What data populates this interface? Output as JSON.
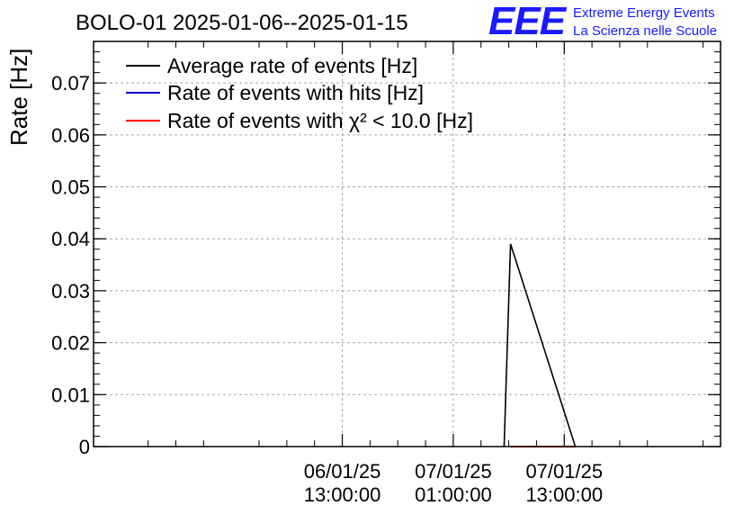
{
  "logo": {
    "letters": "EEE",
    "line1": "Extreme Energy Events",
    "line2": "La Scienza nelle Scuole",
    "color": "#1a1aff"
  },
  "chart_data": {
    "type": "line",
    "title": "BOLO-01 2025-01-06--2025-01-15",
    "ylabel": "Rate [Hz]",
    "xlabel": "",
    "ylim": [
      0,
      0.078
    ],
    "y_ticks": [
      "0",
      "0.01",
      "0.02",
      "0.03",
      "0.04",
      "0.05",
      "0.06",
      "0.07"
    ],
    "y_tick_values": [
      0,
      0.01,
      0.02,
      0.03,
      0.04,
      0.05,
      0.06,
      0.07
    ],
    "xlim_hours": [
      -14.9,
      52.9
    ],
    "x_ticks": [
      {
        "at_hours": 12,
        "date": "06/01/25",
        "time": "13:00:00"
      },
      {
        "at_hours": 24,
        "date": "07/01/25",
        "time": "01:00:00"
      },
      {
        "at_hours": 36,
        "date": "07/01/25",
        "time": "13:00:00"
      }
    ],
    "grid": true,
    "legend_position": "top-left",
    "series": [
      {
        "name": "Average rate of events [Hz]",
        "color": "#000000",
        "points": [
          [
            29.5,
            0
          ],
          [
            30.2,
            0.039
          ],
          [
            37.2,
            0
          ]
        ]
      },
      {
        "name": "Rate of events with hits [Hz]",
        "color": "#0000cc",
        "points": []
      },
      {
        "name": "Rate of events with χ² < 10.0 [Hz]",
        "color": "#ff0000",
        "points": [
          [
            30.2,
            0
          ],
          [
            37.2,
            0
          ]
        ]
      }
    ]
  }
}
